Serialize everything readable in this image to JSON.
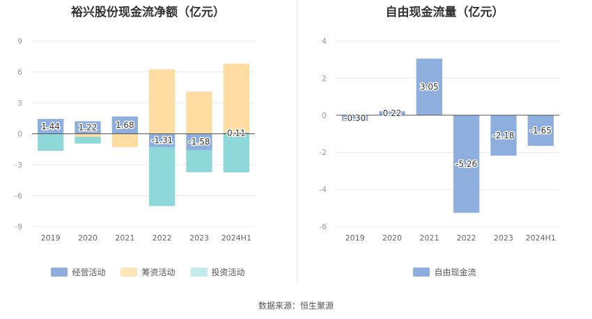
{
  "source_label": "数据来源：恒生聚源",
  "chart_data": [
    {
      "type": "bar",
      "stacked": true,
      "title": "裕兴股份现金流净额（亿元）",
      "categories": [
        "2019",
        "2020",
        "2021",
        "2022",
        "2023",
        "2024H1"
      ],
      "ylim": [
        -9,
        9
      ],
      "yticks": [
        9,
        6,
        3,
        0,
        -3,
        -6,
        -9
      ],
      "grid": true,
      "legend_position": "bottom",
      "series": [
        {
          "name": "经营活动",
          "color": "#8eaedd",
          "values": [
            1.44,
            1.22,
            1.68,
            -1.31,
            -1.58,
            0.11
          ],
          "labels": [
            "1.44",
            "1.22",
            "1.68",
            "-1.31",
            "-1.58",
            "0.11"
          ]
        },
        {
          "name": "筹资活动",
          "color": "#ffdda2",
          "values": [
            0.0,
            -0.3,
            -1.3,
            6.25,
            4.1,
            6.7
          ]
        },
        {
          "name": "投资活动",
          "color": "#8fd8da",
          "values": [
            -1.65,
            -0.65,
            0.0,
            -5.7,
            -2.15,
            -3.75
          ]
        }
      ]
    },
    {
      "type": "bar",
      "title": "自由现金流量（亿元）",
      "categories": [
        "2019",
        "2020",
        "2021",
        "2022",
        "2023",
        "2024H1"
      ],
      "ylim": [
        -6,
        4
      ],
      "yticks": [
        4,
        2,
        0,
        -2,
        -4,
        -6
      ],
      "grid": true,
      "legend_position": "bottom",
      "series": [
        {
          "name": "自由现金流",
          "color": "#8eaedd",
          "values": [
            -0.3,
            0.22,
            3.05,
            -5.26,
            -2.18,
            -1.65
          ],
          "labels": [
            "-0.30",
            "0.22",
            "3.05",
            "-5.26",
            "-2.18",
            "-1.65"
          ]
        }
      ]
    }
  ]
}
